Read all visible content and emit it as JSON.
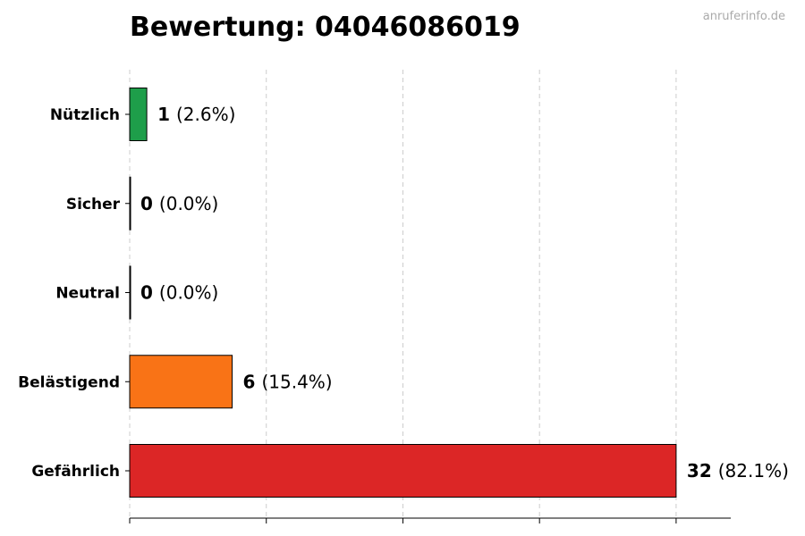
{
  "header": {
    "title": "Bewertung: 04046086019",
    "source": "anruferinfo.de"
  },
  "chart_data": {
    "type": "bar",
    "orientation": "horizontal",
    "title": "Bewertung: 04046086019",
    "categories": [
      "Nützlich",
      "Sicher",
      "Neutral",
      "Belästigend",
      "Gefährlich"
    ],
    "values": [
      1,
      0,
      0,
      6,
      32
    ],
    "percent_labels": [
      "(2.6%)",
      "(0.0%)",
      "(0.0%)",
      "(15.4%)",
      "(82.1%)"
    ],
    "colors": [
      "#1e9e4a",
      "#2b9e45",
      "#999999",
      "#f97316",
      "#dc2626"
    ],
    "xlim": [
      0,
      35.2
    ],
    "x_ticks": [
      0,
      8,
      16,
      24,
      32
    ],
    "xlabel": "",
    "ylabel": "",
    "grid": "vertical-dashed",
    "legend": "none"
  }
}
